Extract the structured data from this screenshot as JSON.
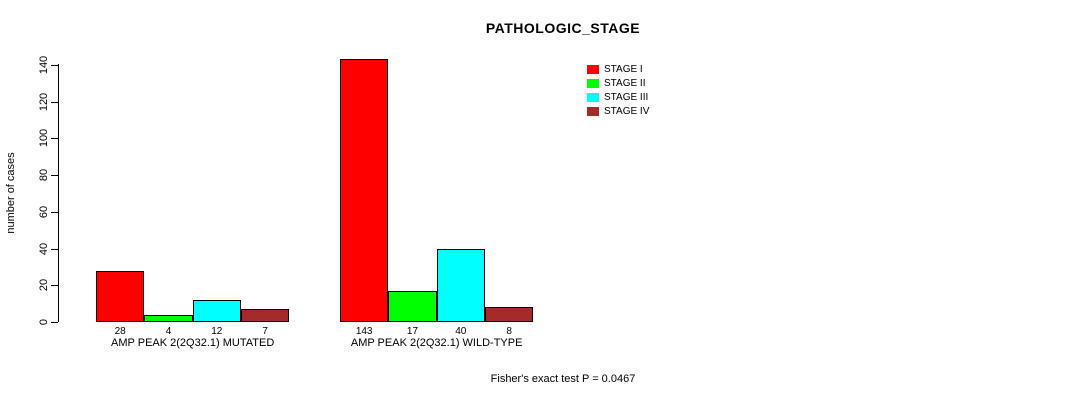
{
  "chart_data": {
    "type": "bar",
    "title": "PATHOLOGIC_STAGE",
    "ylabel": "number of cases",
    "xlabel": "",
    "ylim": [
      0,
      140
    ],
    "yticks": [
      0,
      20,
      40,
      60,
      80,
      100,
      120,
      140
    ],
    "grid": false,
    "legend_position": "top-right",
    "categories": [
      "AMP PEAK 2(2Q32.1) MUTATED",
      "AMP PEAK 2(2Q32.1) WILD-TYPE"
    ],
    "series": [
      {
        "name": "STAGE I",
        "color": "#ff0000",
        "values": [
          28,
          143
        ]
      },
      {
        "name": "STAGE II",
        "color": "#00ff00",
        "values": [
          4,
          17
        ]
      },
      {
        "name": "STAGE III",
        "color": "#00ffff",
        "values": [
          12,
          40
        ]
      },
      {
        "name": "STAGE IV",
        "color": "#a52a2a",
        "values": [
          7,
          8
        ]
      }
    ],
    "bar_value_labels": [
      [
        "28",
        "4",
        "12",
        "7"
      ],
      [
        "143",
        "17",
        "40",
        "8"
      ]
    ],
    "footnote": "Fisher's exact test P = 0.0467"
  },
  "colors": {
    "background": "#ffffff",
    "axis": "#000000",
    "text": "#000000"
  }
}
